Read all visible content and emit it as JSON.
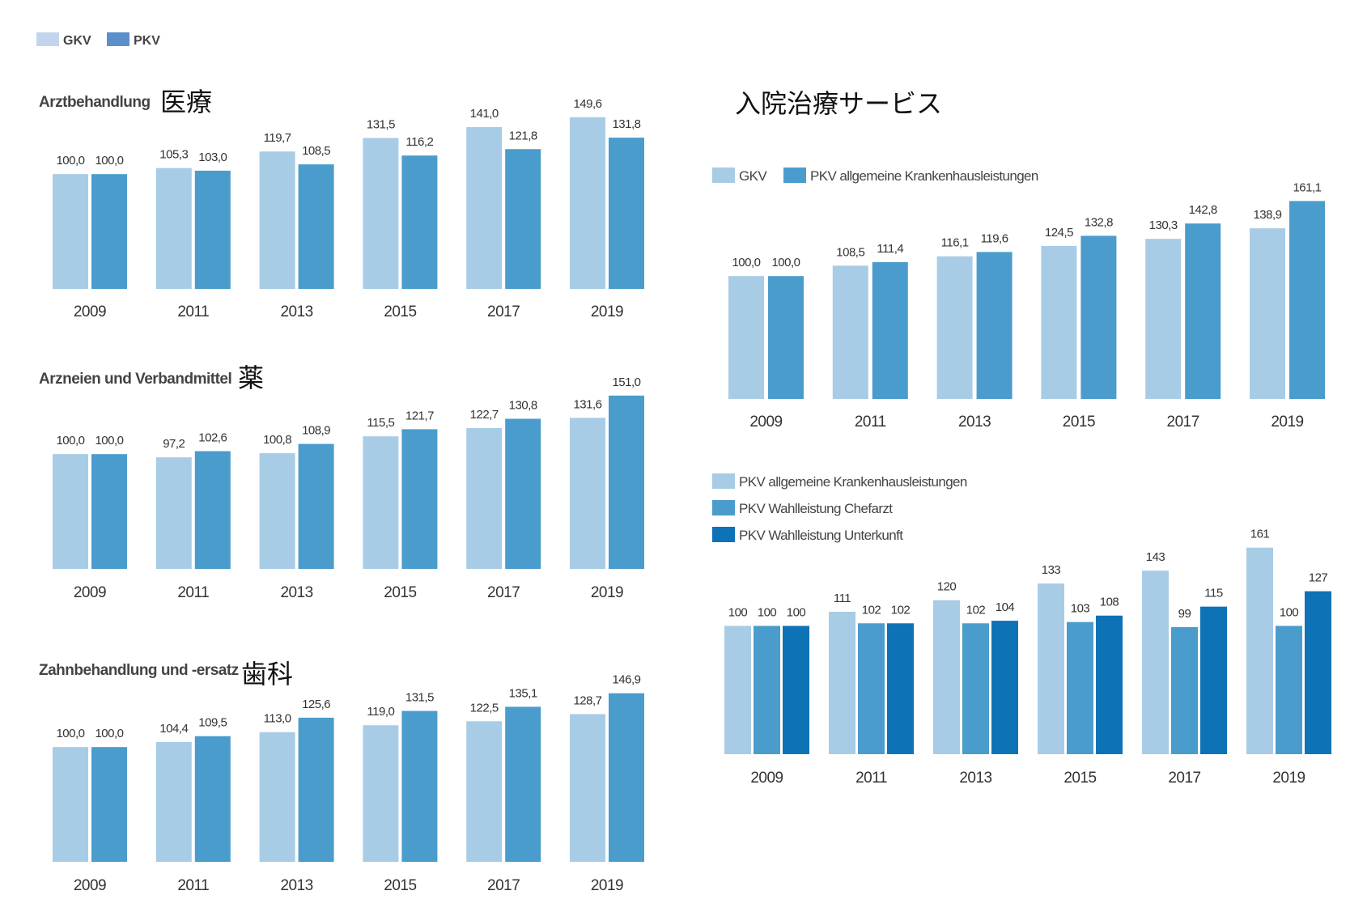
{
  "colors": {
    "light": "#a8cce6",
    "mid": "#4a9ccc",
    "dark": "#0e72b6",
    "legend_top_light": "#c3d4ee",
    "legend_top_dark": "#5b8fcb",
    "text": "#333333"
  },
  "top_legend": {
    "items": [
      {
        "label": "GKV",
        "color": "legend_top_light"
      },
      {
        "label": "PKV",
        "color": "legend_top_dark"
      }
    ]
  },
  "chart_data": [
    {
      "type": "bar",
      "title": "Arztbehandlung",
      "annotation": "医療",
      "categories": [
        "2009",
        "2011",
        "2013",
        "2015",
        "2017",
        "2019"
      ],
      "series": [
        {
          "name": "GKV",
          "color": "light",
          "values": [
            100.0,
            105.3,
            119.7,
            131.5,
            141.0,
            149.6
          ],
          "labels": [
            "100,0",
            "105,3",
            "119,7",
            "131,5",
            "141,0",
            "149,6"
          ]
        },
        {
          "name": "PKV",
          "color": "mid",
          "values": [
            100.0,
            103.0,
            108.5,
            116.2,
            121.8,
            131.8
          ],
          "labels": [
            "100,0",
            "103,0",
            "108,5",
            "116,2",
            "121,8",
            "131,8"
          ]
        }
      ]
    },
    {
      "type": "bar",
      "title": "Arzneien und Verbandmittel",
      "annotation": "薬",
      "categories": [
        "2009",
        "2011",
        "2013",
        "2015",
        "2017",
        "2019"
      ],
      "series": [
        {
          "name": "GKV",
          "color": "light",
          "values": [
            100.0,
            97.2,
            100.8,
            115.5,
            122.7,
            131.6
          ],
          "labels": [
            "100,0",
            "97,2",
            "100,8",
            "115,5",
            "122,7",
            "131,6"
          ]
        },
        {
          "name": "PKV",
          "color": "mid",
          "values": [
            100.0,
            102.6,
            108.9,
            121.7,
            130.8,
            151.0
          ],
          "labels": [
            "100,0",
            "102,6",
            "108,9",
            "121,7",
            "130,8",
            "151,0"
          ]
        }
      ]
    },
    {
      "type": "bar",
      "title": "Zahnbehandlung und -ersatz",
      "annotation": "歯科",
      "categories": [
        "2009",
        "2011",
        "2013",
        "2015",
        "2017",
        "2019"
      ],
      "series": [
        {
          "name": "GKV",
          "color": "light",
          "values": [
            100.0,
            104.4,
            113.0,
            119.0,
            122.5,
            128.7
          ],
          "labels": [
            "100,0",
            "104,4",
            "113,0",
            "119,0",
            "122,5",
            "128,7"
          ]
        },
        {
          "name": "PKV",
          "color": "mid",
          "values": [
            100.0,
            109.5,
            125.6,
            131.5,
            135.1,
            146.9
          ],
          "labels": [
            "100,0",
            "109,5",
            "125,6",
            "131,5",
            "135,1",
            "146,9"
          ]
        }
      ]
    },
    {
      "type": "bar",
      "title": "",
      "annotation": "入院治療サービス",
      "legend": [
        {
          "label": "GKV",
          "color": "light"
        },
        {
          "label": "PKV allgemeine Krankenhausleistungen",
          "color": "mid"
        }
      ],
      "categories": [
        "2009",
        "2011",
        "2013",
        "2015",
        "2017",
        "2019"
      ],
      "series": [
        {
          "name": "GKV",
          "color": "light",
          "values": [
            100.0,
            108.5,
            116.1,
            124.5,
            130.3,
            138.9
          ],
          "labels": [
            "100,0",
            "108,5",
            "116,1",
            "124,5",
            "130,3",
            "138,9"
          ]
        },
        {
          "name": "PKV allgemeine Krankenhausleistungen",
          "color": "mid",
          "values": [
            100.0,
            111.4,
            119.6,
            132.8,
            142.8,
            161.1
          ],
          "labels": [
            "100,0",
            "111,4",
            "119,6",
            "132,8",
            "142,8",
            "161,1"
          ]
        }
      ]
    },
    {
      "type": "bar",
      "title": "",
      "legend": [
        {
          "label": "PKV allgemeine Krankenhausleistungen",
          "color": "light"
        },
        {
          "label": "PKV Wahlleistung Chefarzt",
          "color": "mid"
        },
        {
          "label": "PKV Wahlleistung Unterkunft",
          "color": "dark"
        }
      ],
      "categories": [
        "2009",
        "2011",
        "2013",
        "2015",
        "2017",
        "2019"
      ],
      "series": [
        {
          "name": "PKV allgemeine Krankenhausleistungen",
          "color": "light",
          "values": [
            100,
            111,
            120,
            133,
            143,
            161
          ],
          "labels": [
            "100",
            "111",
            "120",
            "133",
            "143",
            "161"
          ]
        },
        {
          "name": "PKV Wahlleistung Chefarzt",
          "color": "mid",
          "values": [
            100,
            102,
            102,
            103,
            99,
            100
          ],
          "labels": [
            "100",
            "102",
            "102",
            "103",
            "99",
            "100"
          ]
        },
        {
          "name": "PKV Wahlleistung Unterkunft",
          "color": "dark",
          "values": [
            100,
            102,
            104,
            108,
            115,
            127
          ],
          "labels": [
            "100",
            "102",
            "104",
            "108",
            "115",
            "127"
          ]
        }
      ]
    }
  ]
}
